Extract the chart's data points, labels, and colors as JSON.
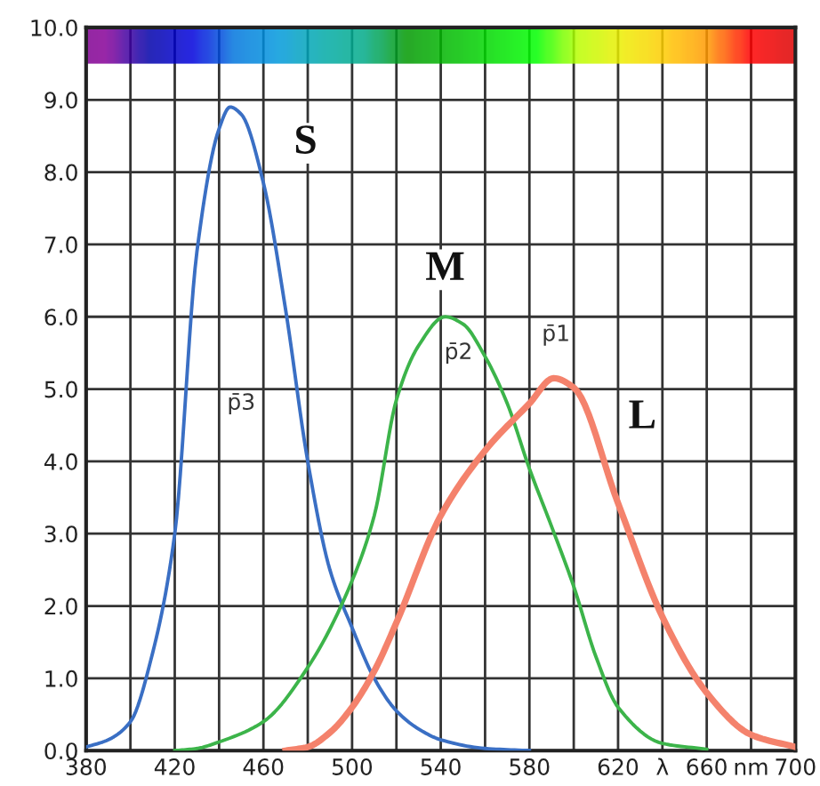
{
  "chart_data": {
    "type": "line",
    "xlim": [
      380,
      700
    ],
    "ylim": [
      0,
      10
    ],
    "xticks": [
      380,
      {
        "value": 400,
        "label": null
      },
      420,
      {
        "value": 440,
        "label": null
      },
      460,
      {
        "value": 480,
        "label": null
      },
      500,
      {
        "value": 520,
        "label": null
      },
      540,
      {
        "value": 560,
        "label": null
      },
      580,
      {
        "value": 600,
        "label": null
      },
      620,
      {
        "value": 640,
        "label": "λ"
      },
      660,
      {
        "value": 680,
        "label": "nm"
      },
      700
    ],
    "yticks": [
      {
        "value": 0,
        "label": "0.0"
      },
      {
        "value": 1,
        "label": "1.0"
      },
      {
        "value": 2,
        "label": "2.0"
      },
      {
        "value": 3,
        "label": "3.0"
      },
      {
        "value": 4,
        "label": "4.0"
      },
      {
        "value": 5,
        "label": "5.0"
      },
      {
        "value": 6,
        "label": "6.0"
      },
      {
        "value": 7,
        "label": "7.0"
      },
      {
        "value": 8,
        "label": "8.0"
      },
      {
        "value": 9,
        "label": "9.0"
      },
      {
        "value": 10,
        "label": "10.0"
      }
    ],
    "grid": true,
    "marker": "none",
    "line_style": "solid",
    "legend": false,
    "series": [
      {
        "name": "S",
        "color": "#3a6fc4",
        "x": [
          380,
          390,
          400,
          410,
          420,
          430,
          440,
          445,
          450,
          460,
          470,
          480,
          490,
          500,
          510,
          520,
          530,
          540,
          560,
          580
        ],
        "values": [
          0.05,
          0.15,
          0.4,
          1.35,
          3.0,
          6.9,
          8.6,
          8.9,
          8.8,
          7.85,
          6.1,
          4.0,
          2.5,
          1.7,
          1.0,
          0.55,
          0.3,
          0.15,
          0.03,
          0
        ]
      },
      {
        "name": "M",
        "color": "#3cb44a",
        "x": [
          420,
          430,
          440,
          460,
          480,
          500,
          510,
          520,
          530,
          542,
          550,
          560,
          570,
          580,
          590,
          600,
          610,
          620,
          640,
          660
        ],
        "values": [
          0,
          0.03,
          0.12,
          0.4,
          1.15,
          2.35,
          3.25,
          4.85,
          5.6,
          6.0,
          5.9,
          5.45,
          4.8,
          3.9,
          3.1,
          2.27,
          1.3,
          0.6,
          0.1,
          0.02
        ]
      },
      {
        "name": "L",
        "color": "#f4826c",
        "x": [
          470,
          480,
          490,
          500,
          510,
          520,
          540,
          560,
          580,
          591,
          600,
          620,
          640,
          660,
          680,
          700
        ],
        "values": [
          0,
          0.05,
          0.25,
          0.6,
          1.1,
          1.77,
          3.25,
          4.15,
          4.8,
          5.15,
          5.02,
          3.42,
          1.85,
          0.8,
          0.22,
          0.05
        ]
      }
    ],
    "annotations": [
      "p̄3",
      "p̄2",
      "p̄1"
    ]
  }
}
